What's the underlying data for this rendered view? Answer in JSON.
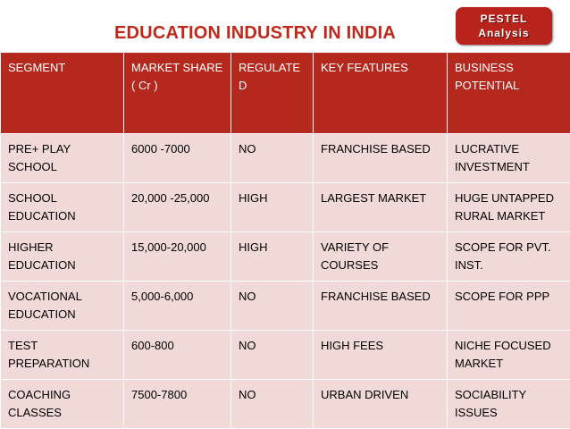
{
  "title": "EDUCATION INDUSTRY IN INDIA",
  "logo": {
    "line1": "PESTEL",
    "line2": "Analysis"
  },
  "table": {
    "header": [
      "SEGMENT",
      "MARKET SHARE ( Cr )",
      "REGULATED",
      "KEY FEATURES",
      "BUSINESS POTENTIAL"
    ],
    "rows": [
      [
        "PRE+ PLAY SCHOOL",
        "6000 -7000",
        "NO",
        "FRANCHISE BASED",
        "LUCRATIVE INVESTMENT"
      ],
      [
        "SCHOOL EDUCATION",
        "20,000 -25,000",
        "HIGH",
        "LARGEST MARKET",
        "HUGE UNTAPPED RURAL MARKET"
      ],
      [
        "HIGHER EDUCATION",
        "15,000-20,000",
        "HIGH",
        "VARIETY OF COURSES",
        "SCOPE FOR PVT. INST."
      ],
      [
        "VOCATIONAL EDUCATION",
        "5,000-6,000",
        "NO",
        "FRANCHISE BASED",
        "SCOPE FOR PPP"
      ],
      [
        "TEST PREPARATION",
        "600-800",
        "NO",
        "HIGH FEES",
        "NICHE FOCUSED MARKET"
      ],
      [
        "COACHING CLASSES",
        "7500-7800",
        "NO",
        "URBAN DRIVEN",
        "SOCIABILITY ISSUES"
      ]
    ]
  }
}
